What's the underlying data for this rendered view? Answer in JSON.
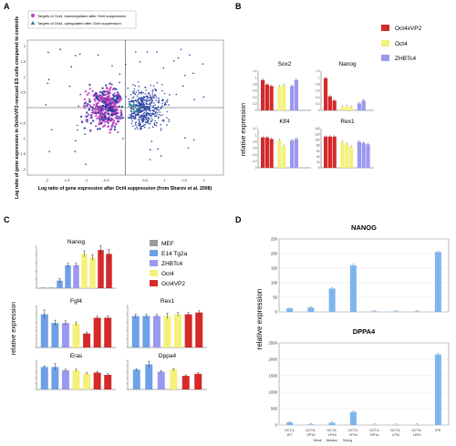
{
  "panels": {
    "A": "A",
    "B": "B",
    "C": "C",
    "D": "D"
  },
  "colors": {
    "oct4vp2": "#d42a2a",
    "oct4": "#f4f07a",
    "zhbtc4": "#9a98ef",
    "mef": "#9b9b9b",
    "e14": "#6ea0e6",
    "nanog_d": "#7eb4ee",
    "dot_a": "#c838c0",
    "dot_b": "#1f3a9e",
    "dot_c": "#2e8c8c"
  },
  "chart_data": [
    {
      "type": "scatter",
      "panel": "A",
      "legend": [
        {
          "name": "Targets of Oct4, downregulated after Oct4 suppression",
          "marker": "circle",
          "color": "#c838c0"
        },
        {
          "name": "Targets of Oct4, upregulated after Oct4 suppression",
          "marker": "triangle",
          "color": "#2e8c8c"
        }
      ],
      "xlabel": "Log ratio of gene expression after Oct4 suppression (from Sharov et al. 2008)",
      "ylabel": "Log ratio of gene expression in Oct4xVP2-rescued ES cells compared to controls",
      "xlim": [
        -2.5,
        2.5
      ],
      "ylim": [
        -2.2,
        2.2
      ],
      "xticks": [
        "-2",
        "-1.5",
        "-1",
        "-0.5",
        "0.5",
        "1",
        "1.5",
        "2"
      ],
      "yticks": [
        "2",
        "1.5",
        "1",
        "0.5",
        "-0.5",
        "-1",
        "-1.5",
        "-2"
      ],
      "seed": 7
    },
    {
      "type": "bar",
      "panel": "B",
      "ylabel": "relative expression",
      "legend": [
        "Oct4xVP2",
        "Oct4",
        "ZHBTc4"
      ],
      "subplots": [
        {
          "title": "Sox2",
          "yticks": [
            "1.2",
            "1",
            "0.8",
            "0.6",
            "0.4",
            "0.2",
            "0"
          ],
          "ymax": 1.2,
          "groups": [
            {
              "color": "oct4vp2",
              "values": [
                1.0,
                0.85,
                0.8
              ]
            },
            {
              "color": "oct4",
              "values": [
                0.78,
                0.82
              ]
            },
            {
              "color": "zhbtc4",
              "values": [
                0.8,
                1.0
              ]
            }
          ]
        },
        {
          "title": "Nanog",
          "yticks": [
            "1.2",
            "1",
            "0.8",
            "0.6",
            "0.4",
            "0.2",
            "0"
          ],
          "ymax": 1.3,
          "groups": [
            {
              "color": "oct4vp2",
              "values": [
                1.15,
                0.5,
                0.35
              ]
            },
            {
              "color": "oct4",
              "values": [
                0.12,
                0.15,
                0.12
              ]
            },
            {
              "color": "zhbtc4",
              "values": [
                0.25,
                0.35
              ]
            }
          ]
        },
        {
          "title": "Klf4",
          "yticks": [
            "1.2",
            "1",
            "0.8",
            "0.6",
            "0.4",
            "0.2",
            "0"
          ],
          "ymax": 1.2,
          "groups": [
            {
              "color": "oct4vp2",
              "values": [
                1.0,
                1.0,
                0.95
              ]
            },
            {
              "color": "oct4",
              "values": [
                0.9,
                0.7
              ]
            },
            {
              "color": "zhbtc4",
              "values": [
                0.9,
                0.95
              ]
            }
          ]
        },
        {
          "title": "Rex1",
          "yticks": [
            "140",
            "120",
            "100",
            "80",
            "60",
            "40",
            "20",
            "0"
          ],
          "ymax": 140,
          "groups": [
            {
              "color": "oct4vp2",
              "values": [
                120,
                120,
                120
              ]
            },
            {
              "color": "oct4",
              "values": [
                100,
                90,
                80
              ]
            },
            {
              "color": "zhbtc4",
              "values": [
                100,
                95,
                90
              ]
            }
          ]
        }
      ]
    },
    {
      "type": "bar",
      "panel": "C",
      "ylabel": "relative expression",
      "legend": [
        "MEF",
        "E14 Tg2a",
        "ZHBTc4",
        "Oct4",
        "Oct4VP2"
      ],
      "subplots": [
        {
          "title": "Nanog",
          "ymax": 1.1,
          "values": [
            0.02,
            0.02,
            0.2,
            0.6,
            0.6,
            0.9,
            0.8,
            1.0,
            0.9
          ],
          "colors": [
            "mef",
            "mef",
            "e14",
            "e14",
            "zhbtc4",
            "oct4",
            "oct4",
            "oct4vp2",
            "oct4vp2"
          ],
          "errors": [
            0,
            0,
            0.05,
            0.05,
            0.05,
            0.08,
            0.08,
            0.12,
            0.12
          ]
        },
        {
          "title": "Fgf4",
          "ymax": 1.2,
          "values": [
            0.95,
            0.7,
            0.7,
            0.68,
            0.4,
            0.85,
            0.85
          ],
          "colors": [
            "e14",
            "e14",
            "zhbtc4",
            "oct4",
            "oct4vp2",
            "oct4vp2",
            "oct4vp2"
          ],
          "errors": [
            0.12,
            0.08,
            0.06,
            0.05,
            0.04,
            0.05,
            0.05
          ]
        },
        {
          "title": "Rex1",
          "ymax": 1.2,
          "values": [
            0.9,
            0.9,
            0.9,
            0.9,
            0.95,
            0.95,
            1.0
          ],
          "colors": [
            "e14",
            "e14",
            "zhbtc4",
            "oct4",
            "oct4",
            "oct4vp2",
            "oct4vp2"
          ],
          "errors": [
            0.05,
            0.05,
            0.05,
            0.08,
            0.05,
            0.05,
            0.05
          ]
        },
        {
          "title": "Eras",
          "ymax": 1.3,
          "values": [
            1.0,
            1.0,
            0.85,
            0.85,
            0.7,
            0.75,
            0.65
          ],
          "colors": [
            "e14",
            "e14",
            "zhbtc4",
            "oct4",
            "oct4",
            "oct4vp2",
            "oct4vp2"
          ],
          "errors": [
            0.05,
            0.15,
            0.05,
            0.05,
            0.05,
            0.05,
            0.05
          ]
        },
        {
          "title": "Dppa4",
          "ymax": 1.4,
          "values": [
            0.95,
            1.2,
            0.85,
            0.95,
            0.65,
            0.75
          ],
          "colors": [
            "e14",
            "e14",
            "zhbtc4",
            "oct4",
            "oct4vp2",
            "oct4vp2"
          ],
          "errors": [
            0.05,
            0.15,
            0.05,
            0.05,
            0.05,
            0.05
          ]
        }
      ]
    },
    {
      "type": "bar",
      "panel": "D",
      "ylabel": "relative expression",
      "categories": [
        "OCT4-WT",
        "OCT4-VP16",
        "OCT4-VP16",
        "OCT4-VP16",
        "OCT4-HP1a",
        "OCT4-LPM",
        "OCT4-LEFb",
        "iPS"
      ],
      "strength_labels": [
        "Weak",
        "Medium",
        "Strong"
      ],
      "subplots": [
        {
          "title": "NANOG",
          "yticks": [
            "250",
            "200",
            "150",
            "100",
            "50",
            "0"
          ],
          "ymax": 250,
          "values": [
            12,
            15,
            80,
            160,
            2,
            2,
            2,
            205
          ]
        },
        {
          "title": "DPPA4",
          "yticks": [
            "2500",
            "2000",
            "1500",
            "1000",
            "500",
            "0"
          ],
          "ymax": 2500,
          "values": [
            80,
            20,
            70,
            400,
            5,
            5,
            5,
            2150
          ]
        }
      ]
    }
  ]
}
